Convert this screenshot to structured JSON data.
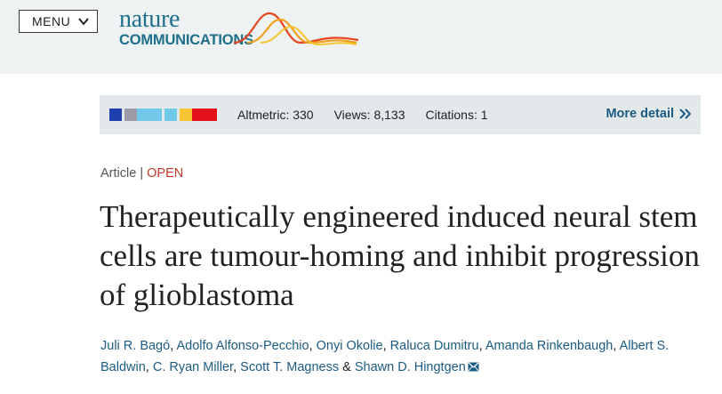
{
  "header": {
    "menu_label": "MENU",
    "logo": {
      "line1": "nature",
      "line2": "COMMUNICATIONS"
    }
  },
  "metrics_bar": {
    "altmetric_colors": [
      "#1f3fae",
      "#9c9aa6",
      "#71c8e8",
      "#71c8e8",
      "#71c8e8",
      "#f5c431",
      "#e3101a",
      "#e3101a"
    ],
    "altmetric": "Altmetric: 330",
    "views": "Views: 8,133",
    "citations": "Citations: 1",
    "more_detail": "More detail"
  },
  "article": {
    "type": "Article",
    "separator": "|",
    "access": "OPEN",
    "title": "Therapeutically engineered induced neural stem cells are tumour-homing and inhibit progression of glioblastoma",
    "authors": [
      "Juli R. Bagó",
      "Adolfo Alfonso-Pecchio",
      "Onyi Okolie",
      "Raluca Dumitru",
      "Amanda Rinkenbaugh",
      "Albert S. Baldwin",
      "C. Ryan Miller",
      "Scott T. Magness",
      "Shawn D. Hingtgen"
    ],
    "author_separator": ", ",
    "last_separator": " & "
  },
  "colors": {
    "topbar": "#eef2f3",
    "brand": "#1d6f8c",
    "link": "#1b5b83",
    "open": "#c0392b"
  }
}
